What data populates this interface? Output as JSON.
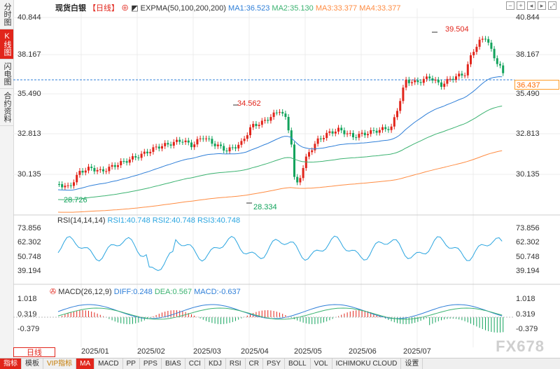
{
  "side_tabs": [
    "分时图",
    "K线图",
    "闪电图",
    "合约资料"
  ],
  "header": {
    "symbol": "现货白银",
    "period": "【日线】",
    "ind_name": "EXPMA(50,100,200,200)",
    "ma1": "MA1:36.523",
    "ma2": "MA2:35.130",
    "ma3": "MA3:33.377",
    "ma4": "MA4:33.377"
  },
  "main_axis": [
    "40.844",
    "38.167",
    "35.490",
    "32.813",
    "30.135"
  ],
  "annotations": {
    "high": "39.504",
    "mid_high": "34.562",
    "low1": "28.726",
    "low2": "28.334"
  },
  "current_price": "36.437",
  "rsi": {
    "label": "RSI(14,14,14)",
    "v1": "RSI1:40.748",
    "v2": "RSI2:40.748",
    "v3": "RSI3:40.748",
    "axis": [
      "73.856",
      "62.302",
      "50.748",
      "39.194"
    ]
  },
  "macd": {
    "label": "MACD(26,12,9)",
    "diff": "DIFF:0.248",
    "dea": "DEA:0.567",
    "macd": "MACD:-0.637",
    "axis": [
      "1.018",
      "0.319",
      "-0.379"
    ]
  },
  "period_button": "日线",
  "x_axis": [
    "2025/01",
    "2025/02",
    "2025/03",
    "2025/04",
    "2025/05",
    "2025/06",
    "2025/07"
  ],
  "bottom_tabs": [
    "指标",
    "模板",
    "VIP指标",
    "MA",
    "MACD",
    "PP",
    "PPS",
    "BIAS",
    "CCI",
    "KDJ",
    "RSI",
    "CR",
    "PSY",
    "BOLL",
    "VOL",
    "ICHIMOKU CLOUD",
    "设置"
  ],
  "watermark": "FX678",
  "colors": {
    "up": "#e1251b",
    "down": "#12a35c",
    "ma1": "#2f7fd8",
    "ma2": "#3cb371",
    "ma3": "#ff8c42",
    "accent": "#e1251b"
  }
}
